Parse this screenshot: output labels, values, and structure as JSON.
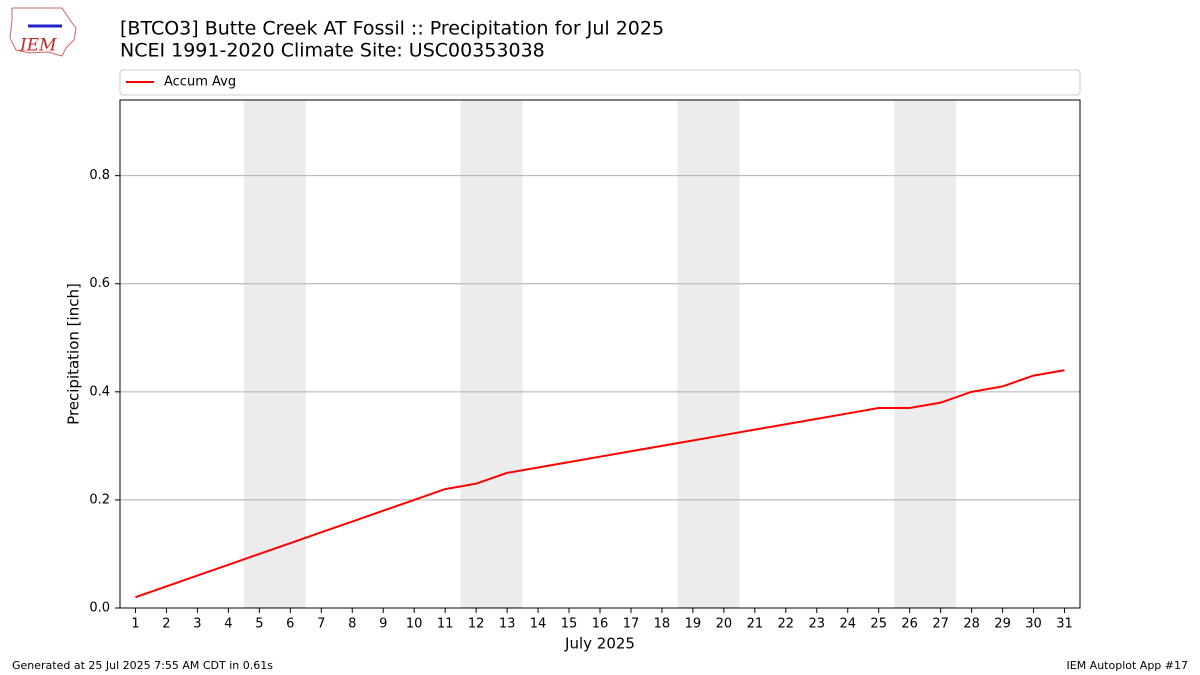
{
  "logo_text": "IEM",
  "chart_data": {
    "type": "line",
    "title": "[BTCO3] Butte Creek  AT Fossil :: Precipitation for Jul 2025",
    "subtitle": "NCEI 1991-2020 Climate Site: USC00353038",
    "x_label": "July 2025",
    "y_label": "Precipitation [inch]",
    "x": [
      1,
      2,
      3,
      4,
      5,
      6,
      7,
      8,
      9,
      10,
      11,
      12,
      13,
      14,
      15,
      16,
      17,
      18,
      19,
      20,
      21,
      22,
      23,
      24,
      25,
      26,
      27,
      28,
      29,
      30,
      31
    ],
    "series": [
      {
        "name": "Accum Avg",
        "color": "#ff0000",
        "values": [
          0.02,
          0.04,
          0.06,
          0.08,
          0.1,
          0.12,
          0.14,
          0.16,
          0.18,
          0.2,
          0.22,
          0.23,
          0.25,
          0.26,
          0.27,
          0.28,
          0.29,
          0.3,
          0.31,
          0.32,
          0.33,
          0.34,
          0.35,
          0.36,
          0.37,
          0.37,
          0.38,
          0.4,
          0.41,
          0.43,
          0.44
        ]
      }
    ],
    "xlim": [
      0.5,
      31.5
    ],
    "ylim": [
      0,
      0.94
    ],
    "xticks": [
      1,
      2,
      3,
      4,
      5,
      6,
      7,
      8,
      9,
      10,
      11,
      12,
      13,
      14,
      15,
      16,
      17,
      18,
      19,
      20,
      21,
      22,
      23,
      24,
      25,
      26,
      27,
      28,
      29,
      30,
      31
    ],
    "yticks": [
      {
        "value": 0,
        "label": "0.0"
      },
      0.2,
      0.4,
      0.6,
      0.8
    ],
    "grid": true,
    "legend": "top",
    "shaded": [
      [
        4.5,
        6.5
      ],
      [
        11.5,
        13.5
      ],
      [
        18.5,
        20.5
      ],
      [
        25.5,
        27.5
      ]
    ],
    "shade_color": "#ececec",
    "footer_left": "Generated at 25 Jul 2025 7:55 AM CDT in 0.61s",
    "footer_right": "IEM Autoplot App #17"
  }
}
